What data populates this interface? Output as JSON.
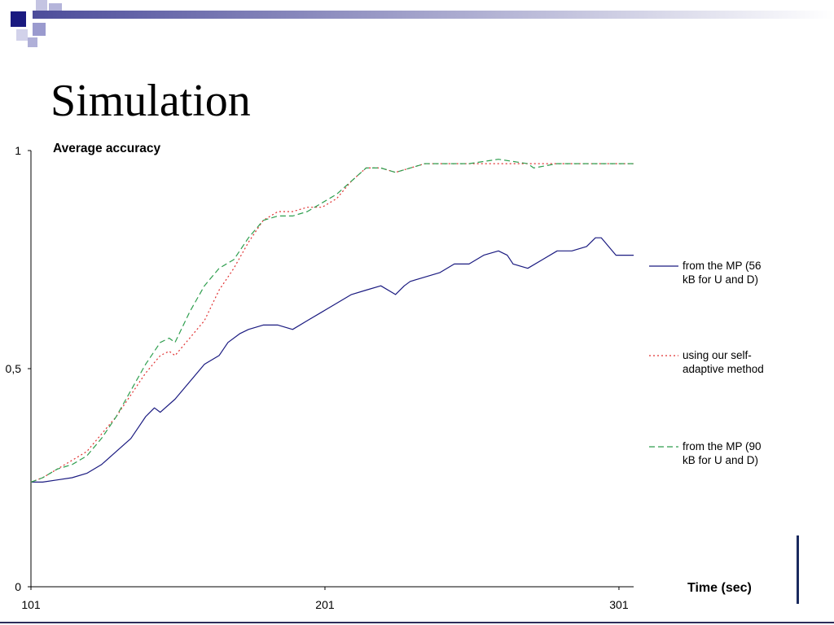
{
  "slide": {
    "title": "Simulation",
    "colors": {
      "navy": "#1a1a80",
      "deco_light": "#9a9ace",
      "bar_gradient_start": "#4c4c9a",
      "bar_gradient_end": "#ffffff",
      "bottom_line": "#2d2d5a",
      "right_accent": "#1a2a5e"
    }
  },
  "chart_data": {
    "type": "line",
    "title": "Average accuracy",
    "xlabel": "Time (sec)",
    "ylabel": "",
    "xlim": [
      101,
      306
    ],
    "ylim": [
      0,
      1
    ],
    "x_ticks": [
      "101",
      "201",
      "301"
    ],
    "y_ticks": [
      "0",
      "0,5",
      "1"
    ],
    "grid": false,
    "legend_position": "right",
    "series": [
      {
        "name": "from the MP (56 kB for U and D)",
        "legend_lines": [
          "from the MP (56",
          "kB for U and D)"
        ],
        "color": "#1a1a80",
        "style": "solid",
        "x": [
          101,
          105,
          110,
          115,
          120,
          125,
          130,
          135,
          138,
          140,
          143,
          145,
          150,
          155,
          160,
          165,
          168,
          172,
          175,
          180,
          185,
          190,
          195,
          200,
          205,
          210,
          215,
          220,
          225,
          228,
          230,
          235,
          240,
          245,
          250,
          255,
          260,
          263,
          265,
          270,
          275,
          280,
          285,
          290,
          293,
          295,
          300,
          306
        ],
        "y": [
          0.24,
          0.24,
          0.245,
          0.25,
          0.26,
          0.28,
          0.31,
          0.34,
          0.37,
          0.39,
          0.41,
          0.4,
          0.43,
          0.47,
          0.51,
          0.53,
          0.56,
          0.58,
          0.59,
          0.6,
          0.6,
          0.59,
          0.61,
          0.63,
          0.65,
          0.67,
          0.68,
          0.69,
          0.67,
          0.69,
          0.7,
          0.71,
          0.72,
          0.74,
          0.74,
          0.76,
          0.77,
          0.76,
          0.74,
          0.73,
          0.75,
          0.77,
          0.77,
          0.78,
          0.8,
          0.8,
          0.76,
          0.76
        ]
      },
      {
        "name": "using our self-adaptive method",
        "legend_lines": [
          "using our self-",
          "adaptive method"
        ],
        "color": "#e03030",
        "style": "dotted",
        "x": [
          101,
          105,
          110,
          115,
          120,
          125,
          130,
          135,
          140,
          145,
          148,
          150,
          155,
          160,
          165,
          170,
          175,
          180,
          185,
          190,
          195,
          200,
          205,
          210,
          215,
          220,
          225,
          230,
          235,
          240,
          250,
          260,
          270,
          280,
          290,
          300,
          306
        ],
        "y": [
          0.24,
          0.25,
          0.27,
          0.29,
          0.31,
          0.35,
          0.39,
          0.44,
          0.49,
          0.53,
          0.54,
          0.53,
          0.57,
          0.61,
          0.68,
          0.73,
          0.79,
          0.84,
          0.86,
          0.86,
          0.87,
          0.87,
          0.89,
          0.93,
          0.96,
          0.96,
          0.95,
          0.96,
          0.97,
          0.97,
          0.97,
          0.97,
          0.97,
          0.97,
          0.97,
          0.97,
          0.97
        ]
      },
      {
        "name": "from the MP (90 kB for U and D)",
        "legend_lines": [
          "from the MP (90",
          "kB for U and D)"
        ],
        "color": "#2e9e4e",
        "style": "dashed",
        "x": [
          101,
          105,
          110,
          115,
          120,
          125,
          130,
          135,
          140,
          145,
          148,
          150,
          155,
          160,
          165,
          170,
          175,
          180,
          185,
          190,
          195,
          200,
          205,
          210,
          215,
          220,
          225,
          230,
          235,
          240,
          250,
          260,
          270,
          272,
          280,
          290,
          300,
          306
        ],
        "y": [
          0.24,
          0.25,
          0.27,
          0.28,
          0.3,
          0.34,
          0.39,
          0.45,
          0.51,
          0.56,
          0.57,
          0.56,
          0.63,
          0.69,
          0.73,
          0.75,
          0.8,
          0.84,
          0.85,
          0.85,
          0.86,
          0.88,
          0.9,
          0.93,
          0.96,
          0.96,
          0.95,
          0.96,
          0.97,
          0.97,
          0.97,
          0.98,
          0.97,
          0.96,
          0.97,
          0.97,
          0.97,
          0.97
        ]
      }
    ]
  }
}
